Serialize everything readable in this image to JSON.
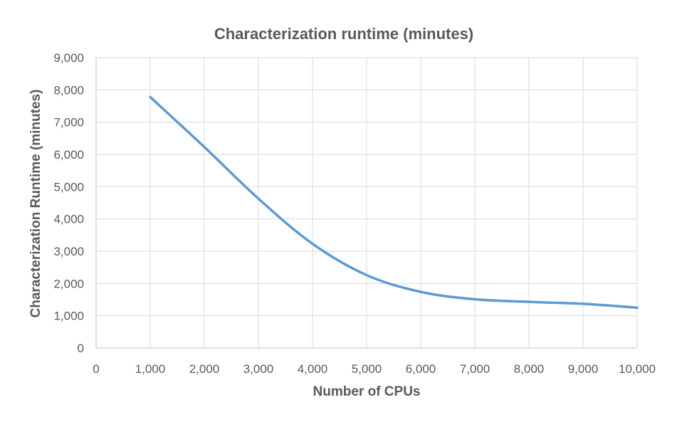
{
  "chart_data": {
    "type": "line",
    "title": "Characterization runtime (minutes)",
    "xlabel": "Number of CPUs",
    "ylabel": "Characterization Runtime (minutes)",
    "xlim": [
      0,
      10000
    ],
    "ylim": [
      0,
      9000
    ],
    "x_ticks": [
      0,
      1000,
      2000,
      3000,
      4000,
      5000,
      6000,
      7000,
      8000,
      9000,
      10000
    ],
    "x_tick_labels": [
      "0",
      "1,000",
      "2,000",
      "3,000",
      "4,000",
      "5,000",
      "6,000",
      "7,000",
      "8,000",
      "9,000",
      "10,000"
    ],
    "y_ticks": [
      0,
      1000,
      2000,
      3000,
      4000,
      5000,
      6000,
      7000,
      8000,
      9000
    ],
    "y_tick_labels": [
      "0",
      "1,000",
      "2,000",
      "3,000",
      "4,000",
      "5,000",
      "6,000",
      "7,000",
      "8,000",
      "9,000"
    ],
    "grid": true,
    "legend": "none",
    "series": [
      {
        "color": "#5b9bd5",
        "smooth": true,
        "x": [
          1000,
          2000,
          3000,
          4000,
          5000,
          6000,
          7000,
          8000,
          9000,
          10000
        ],
        "y": [
          7780,
          6230,
          4630,
          3230,
          2260,
          1740,
          1510,
          1430,
          1370,
          1250
        ]
      }
    ]
  }
}
